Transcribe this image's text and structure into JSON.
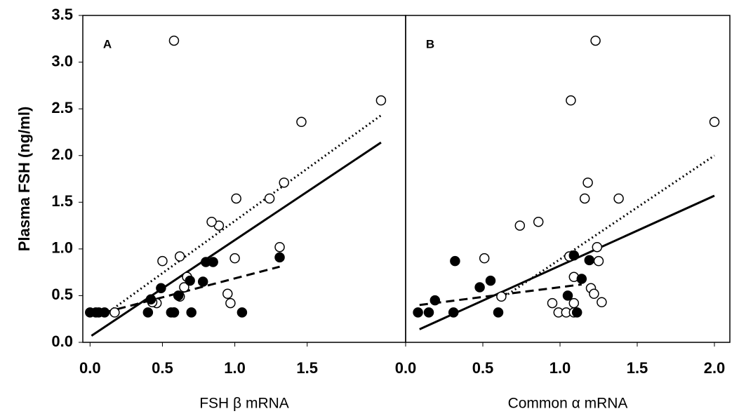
{
  "chart_data": [
    {
      "type": "scatter",
      "panel_label": "A",
      "x_label": "FSH β mRNA",
      "y_label": "Plasma FSH (ng/ml)",
      "xlim": [
        -0.05,
        2.18
      ],
      "xticks": [
        {
          "value": 0,
          "label": "0.0"
        },
        0.5,
        {
          "value": 1,
          "label": "1.0"
        },
        1.5
      ],
      "ylim": [
        0,
        3.5
      ],
      "yticks": [
        {
          "value": 0,
          "label": "0.0"
        },
        0.5,
        {
          "value": 1,
          "label": "1.0"
        },
        1.5,
        {
          "value": 2,
          "label": "2.0"
        },
        2.5,
        {
          "value": 3,
          "label": "3.0"
        },
        3.5
      ],
      "series": [
        {
          "marker": "open",
          "x": [
            0.58,
            2.01,
            1.46,
            1.34,
            1.24,
            1.01,
            0.89,
            0.84,
            1.31,
            1.0,
            0.62,
            0.5,
            0.67,
            0.65,
            0.95,
            0.97,
            0.62,
            0.46,
            0.43,
            0.58,
            0.17
          ],
          "y": [
            3.23,
            2.59,
            2.36,
            1.71,
            1.54,
            1.54,
            1.25,
            1.29,
            1.02,
            0.9,
            0.92,
            0.87,
            0.7,
            0.59,
            0.52,
            0.42,
            0.49,
            0.42,
            0.43,
            0.32,
            0.32
          ]
        },
        {
          "marker": "filled",
          "x": [
            0.0,
            0.04,
            0.06,
            0.1,
            0.4,
            0.42,
            0.49,
            0.56,
            0.58,
            0.61,
            0.69,
            0.7,
            0.78,
            0.8,
            0.85,
            1.05,
            1.31
          ],
          "y": [
            0.32,
            0.32,
            0.32,
            0.32,
            0.32,
            0.46,
            0.58,
            0.32,
            0.32,
            0.5,
            0.66,
            0.32,
            0.65,
            0.86,
            0.86,
            0.32,
            0.91
          ]
        }
      ],
      "lines": [
        {
          "dash": "solid",
          "x": [
            0.01,
            2.01
          ],
          "y": [
            0.07,
            2.14
          ]
        },
        {
          "dash": "dotted",
          "x": [
            0.16,
            2.01
          ],
          "y": [
            0.36,
            2.43
          ]
        },
        {
          "dash": "dashed",
          "x": [
            0.1,
            1.31
          ],
          "y": [
            0.32,
            0.81
          ]
        }
      ]
    },
    {
      "type": "scatter",
      "panel_label": "B",
      "x_label": "Common α mRNA",
      "xlim": [
        0,
        2.1
      ],
      "xticks": [
        {
          "value": 0,
          "label": "0.0"
        },
        0.5,
        {
          "value": 1,
          "label": "1.0"
        },
        1.5,
        {
          "value": 2,
          "label": "2.0"
        }
      ],
      "ylim": [
        0,
        3.5
      ],
      "series": [
        {
          "marker": "open",
          "x": [
            1.23,
            1.07,
            2.0,
            1.18,
            1.16,
            1.38,
            0.74,
            0.86,
            1.24,
            0.51,
            1.06,
            1.25,
            1.09,
            0.62,
            0.95,
            1.09,
            1.2,
            1.22,
            1.27,
            0.99,
            1.04,
            1.09
          ],
          "y": [
            3.23,
            2.59,
            2.36,
            1.71,
            1.54,
            1.54,
            1.25,
            1.29,
            1.02,
            0.9,
            0.92,
            0.87,
            0.7,
            0.49,
            0.42,
            0.42,
            0.58,
            0.52,
            0.43,
            0.32,
            0.32,
            0.32
          ]
        },
        {
          "marker": "filled",
          "x": [
            0.08,
            0.15,
            0.19,
            0.31,
            0.32,
            0.48,
            0.55,
            0.6,
            1.05,
            1.09,
            1.11,
            1.14,
            1.19
          ],
          "y": [
            0.32,
            0.32,
            0.45,
            0.32,
            0.87,
            0.59,
            0.66,
            0.32,
            0.5,
            0.93,
            0.32,
            0.68,
            0.88
          ]
        }
      ],
      "lines": [
        {
          "dash": "solid",
          "x": [
            0.09,
            2.0
          ],
          "y": [
            0.14,
            1.57
          ]
        },
        {
          "dash": "dotted",
          "x": [
            0.64,
            2.0
          ],
          "y": [
            0.49,
            2.0
          ]
        },
        {
          "dash": "dashed",
          "x": [
            0.09,
            1.14
          ],
          "y": [
            0.4,
            0.62
          ]
        }
      ]
    }
  ]
}
